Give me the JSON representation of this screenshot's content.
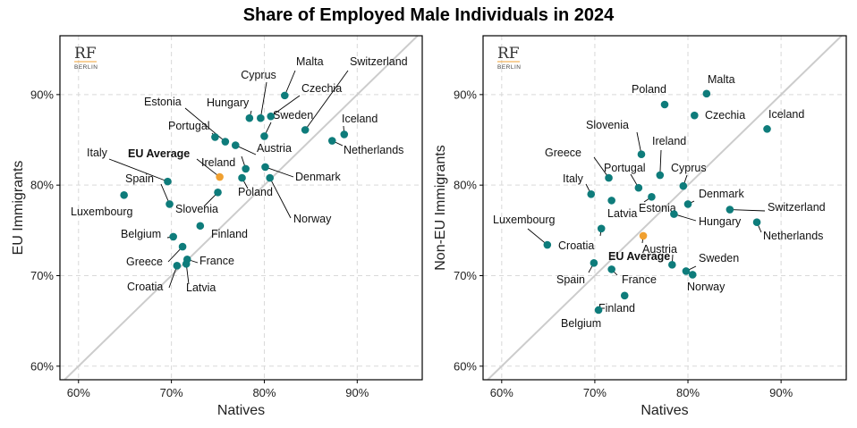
{
  "chart_data": {
    "title": "Share of Employed Male Individuals in 2024",
    "logo": {
      "text": "RF",
      "subtext": "BERLIN"
    },
    "colors": {
      "point": "#0e7c7b",
      "highlight": "#f0a030",
      "diagonal": "#cccccc",
      "grid": "#d9d9d9"
    },
    "panels": [
      {
        "type": "scatter",
        "xlabel": "Natives",
        "ylabel": "EU Immigrants",
        "xlim": [
          58,
          97
        ],
        "ylim": [
          58.5,
          96.5
        ],
        "xticks": [
          "60%",
          "70%",
          "80%",
          "90%"
        ],
        "yticks": [
          "60%",
          "70%",
          "80%",
          "90%"
        ],
        "points": [
          {
            "name": "Malta",
            "x": 82.2,
            "y": 89.9
          },
          {
            "name": "Switzerland",
            "x": 84.4,
            "y": 86.1
          },
          {
            "name": "Cyprus",
            "x": 79.6,
            "y": 87.4
          },
          {
            "name": "Czechia",
            "x": 80.7,
            "y": 87.6
          },
          {
            "name": "Hungary",
            "x": 78.4,
            "y": 87.4
          },
          {
            "name": "Sweden",
            "x": 80.0,
            "y": 85.4
          },
          {
            "name": "Iceland",
            "x": 88.6,
            "y": 85.6
          },
          {
            "name": "Netherlands",
            "x": 87.3,
            "y": 84.9
          },
          {
            "name": "Estonia",
            "x": 75.8,
            "y": 84.8
          },
          {
            "name": "Portugal",
            "x": 74.7,
            "y": 85.3
          },
          {
            "name": "Austria",
            "x": 76.9,
            "y": 84.4
          },
          {
            "name": "Ireland",
            "x": 78.0,
            "y": 81.8
          },
          {
            "name": "EU Average",
            "x": 75.2,
            "y": 80.9,
            "highlight": true
          },
          {
            "name": "Denmark",
            "x": 80.1,
            "y": 82.0
          },
          {
            "name": "Poland",
            "x": 77.6,
            "y": 80.8
          },
          {
            "name": "Norway",
            "x": 80.6,
            "y": 80.8
          },
          {
            "name": "Italy",
            "x": 69.6,
            "y": 80.4
          },
          {
            "name": "Spain",
            "x": 69.8,
            "y": 77.9
          },
          {
            "name": "Luxembourg",
            "x": 64.9,
            "y": 78.9
          },
          {
            "name": "Slovenia",
            "x": 75.0,
            "y": 79.2
          },
          {
            "name": "Finland",
            "x": 73.1,
            "y": 75.5
          },
          {
            "name": "Belgium",
            "x": 70.2,
            "y": 74.3
          },
          {
            "name": "Greece",
            "x": 71.2,
            "y": 73.2
          },
          {
            "name": "France",
            "x": 71.7,
            "y": 71.8
          },
          {
            "name": "Croatia",
            "x": 70.6,
            "y": 71.1
          },
          {
            "name": "Latvia",
            "x": 71.6,
            "y": 71.3
          }
        ]
      },
      {
        "type": "scatter",
        "xlabel": "Natives",
        "ylabel": "Non-EU Immigrants",
        "xlim": [
          58,
          97
        ],
        "ylim": [
          58.5,
          96.5
        ],
        "xticks": [
          "60%",
          "70%",
          "80%",
          "90%"
        ],
        "yticks": [
          "60%",
          "70%",
          "80%",
          "90%"
        ],
        "points": [
          {
            "name": "Malta",
            "x": 82.0,
            "y": 90.1
          },
          {
            "name": "Poland",
            "x": 77.5,
            "y": 88.9
          },
          {
            "name": "Czechia",
            "x": 80.7,
            "y": 87.7
          },
          {
            "name": "Iceland",
            "x": 88.5,
            "y": 86.2
          },
          {
            "name": "Slovenia",
            "x": 75.0,
            "y": 83.4
          },
          {
            "name": "Ireland",
            "x": 77.0,
            "y": 81.1
          },
          {
            "name": "Cyprus",
            "x": 79.5,
            "y": 79.9
          },
          {
            "name": "Greece",
            "x": 71.5,
            "y": 80.8
          },
          {
            "name": "Portugal",
            "x": 74.7,
            "y": 79.7
          },
          {
            "name": "Italy",
            "x": 69.6,
            "y": 79.0
          },
          {
            "name": "Estonia",
            "x": 76.1,
            "y": 78.7
          },
          {
            "name": "Latvia",
            "x": 71.8,
            "y": 78.3
          },
          {
            "name": "Denmark",
            "x": 80.0,
            "y": 77.9
          },
          {
            "name": "Hungary",
            "x": 78.5,
            "y": 76.8
          },
          {
            "name": "Switzerland",
            "x": 84.5,
            "y": 77.3
          },
          {
            "name": "Netherlands",
            "x": 87.4,
            "y": 75.9
          },
          {
            "name": "Luxembourg",
            "x": 64.9,
            "y": 73.4
          },
          {
            "name": "Croatia",
            "x": 70.7,
            "y": 75.2
          },
          {
            "name": "EU Average",
            "x": 75.2,
            "y": 74.4,
            "highlight": true
          },
          {
            "name": "Austria",
            "x": 78.3,
            "y": 71.2
          },
          {
            "name": "Sweden",
            "x": 79.8,
            "y": 70.5
          },
          {
            "name": "Spain",
            "x": 69.9,
            "y": 71.4
          },
          {
            "name": "France",
            "x": 71.8,
            "y": 70.7
          },
          {
            "name": "Norway",
            "x": 80.5,
            "y": 70.1
          },
          {
            "name": "Finland",
            "x": 73.2,
            "y": 67.8
          },
          {
            "name": "Belgium",
            "x": 70.4,
            "y": 66.2
          }
        ]
      }
    ]
  }
}
